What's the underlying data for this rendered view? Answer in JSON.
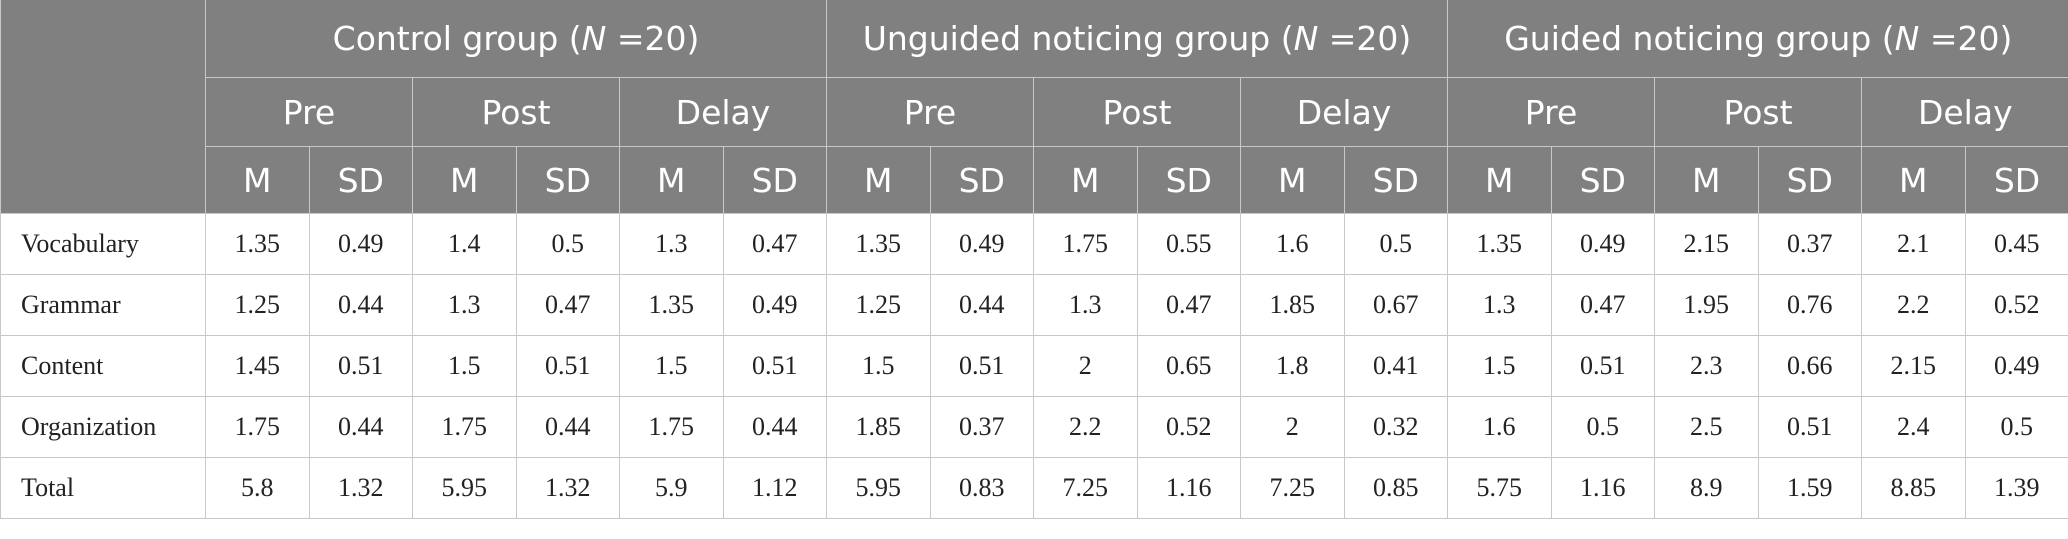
{
  "table": {
    "groups": [
      {
        "prefix": "Control group (",
        "italic": "N",
        "suffix": " =20)"
      },
      {
        "prefix": "Unguided noticing group (",
        "italic": "N",
        "suffix": " =20)"
      },
      {
        "prefix": "Guided noticing group (",
        "italic": "N",
        "suffix": " =20)"
      }
    ],
    "phases": [
      "Pre",
      "Post",
      "Delay"
    ],
    "stats": [
      "M",
      "SD"
    ],
    "rows": [
      {
        "label": "Vocabulary",
        "values": [
          1.35,
          0.49,
          1.4,
          0.5,
          1.3,
          0.47,
          1.35,
          0.49,
          1.75,
          0.55,
          1.6,
          0.5,
          1.35,
          0.49,
          2.15,
          0.37,
          2.1,
          0.45
        ]
      },
      {
        "label": "Grammar",
        "values": [
          1.25,
          0.44,
          1.3,
          0.47,
          1.35,
          0.49,
          1.25,
          0.44,
          1.3,
          0.47,
          1.85,
          0.67,
          1.3,
          0.47,
          1.95,
          0.76,
          2.2,
          0.52
        ]
      },
      {
        "label": "Content",
        "values": [
          1.45,
          0.51,
          1.5,
          0.51,
          1.5,
          0.51,
          1.5,
          0.51,
          2,
          0.65,
          1.8,
          0.41,
          1.5,
          0.51,
          2.3,
          0.66,
          2.15,
          0.49
        ]
      },
      {
        "label": "Organization",
        "values": [
          1.75,
          0.44,
          1.75,
          0.44,
          1.75,
          0.44,
          1.85,
          0.37,
          2.2,
          0.52,
          2,
          0.32,
          1.6,
          0.5,
          2.5,
          0.51,
          2.4,
          0.5
        ]
      },
      {
        "label": "Total",
        "values": [
          5.8,
          1.32,
          5.95,
          1.32,
          5.9,
          1.12,
          5.95,
          0.83,
          7.25,
          1.16,
          7.25,
          0.85,
          5.75,
          1.16,
          8.9,
          1.59,
          8.85,
          1.39
        ]
      }
    ]
  }
}
